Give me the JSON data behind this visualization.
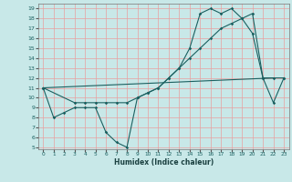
{
  "xlabel": "Humidex (Indice chaleur)",
  "bg_color": "#c8e8e8",
  "grid_color": "#e8a0a0",
  "line_color": "#1a6060",
  "xlim": [
    -0.5,
    23.5
  ],
  "ylim": [
    4.8,
    19.5
  ],
  "yticks": [
    5,
    6,
    7,
    8,
    9,
    10,
    11,
    12,
    13,
    14,
    15,
    16,
    17,
    18,
    19
  ],
  "xticks": [
    0,
    1,
    2,
    3,
    4,
    5,
    6,
    7,
    8,
    9,
    10,
    11,
    12,
    13,
    14,
    15,
    16,
    17,
    18,
    19,
    20,
    21,
    22,
    23
  ],
  "line1_x": [
    0,
    1,
    2,
    3,
    4,
    5,
    6,
    7,
    8,
    9,
    10,
    11,
    12,
    13,
    14,
    15,
    16,
    17,
    18,
    19,
    20,
    21,
    22,
    23
  ],
  "line1_y": [
    11,
    8,
    8.5,
    9,
    9,
    9,
    6.5,
    5.5,
    5,
    10,
    10.5,
    11,
    12,
    13,
    15,
    18.5,
    19,
    18.5,
    19,
    18,
    16.5,
    12,
    9.5,
    12
  ],
  "line2_x": [
    0,
    22
  ],
  "line2_y": [
    11,
    12
  ],
  "line3_x": [
    0,
    3,
    4,
    5,
    6,
    7,
    8,
    9,
    10,
    11,
    12,
    13,
    14,
    15,
    16,
    17,
    18,
    19,
    20,
    21,
    22,
    23
  ],
  "line3_y": [
    11,
    9.5,
    9.5,
    9.5,
    9.5,
    9.5,
    9.5,
    10,
    10.5,
    11,
    12,
    13,
    14,
    15,
    16,
    17,
    17.5,
    18,
    18.5,
    12,
    12,
    12
  ]
}
